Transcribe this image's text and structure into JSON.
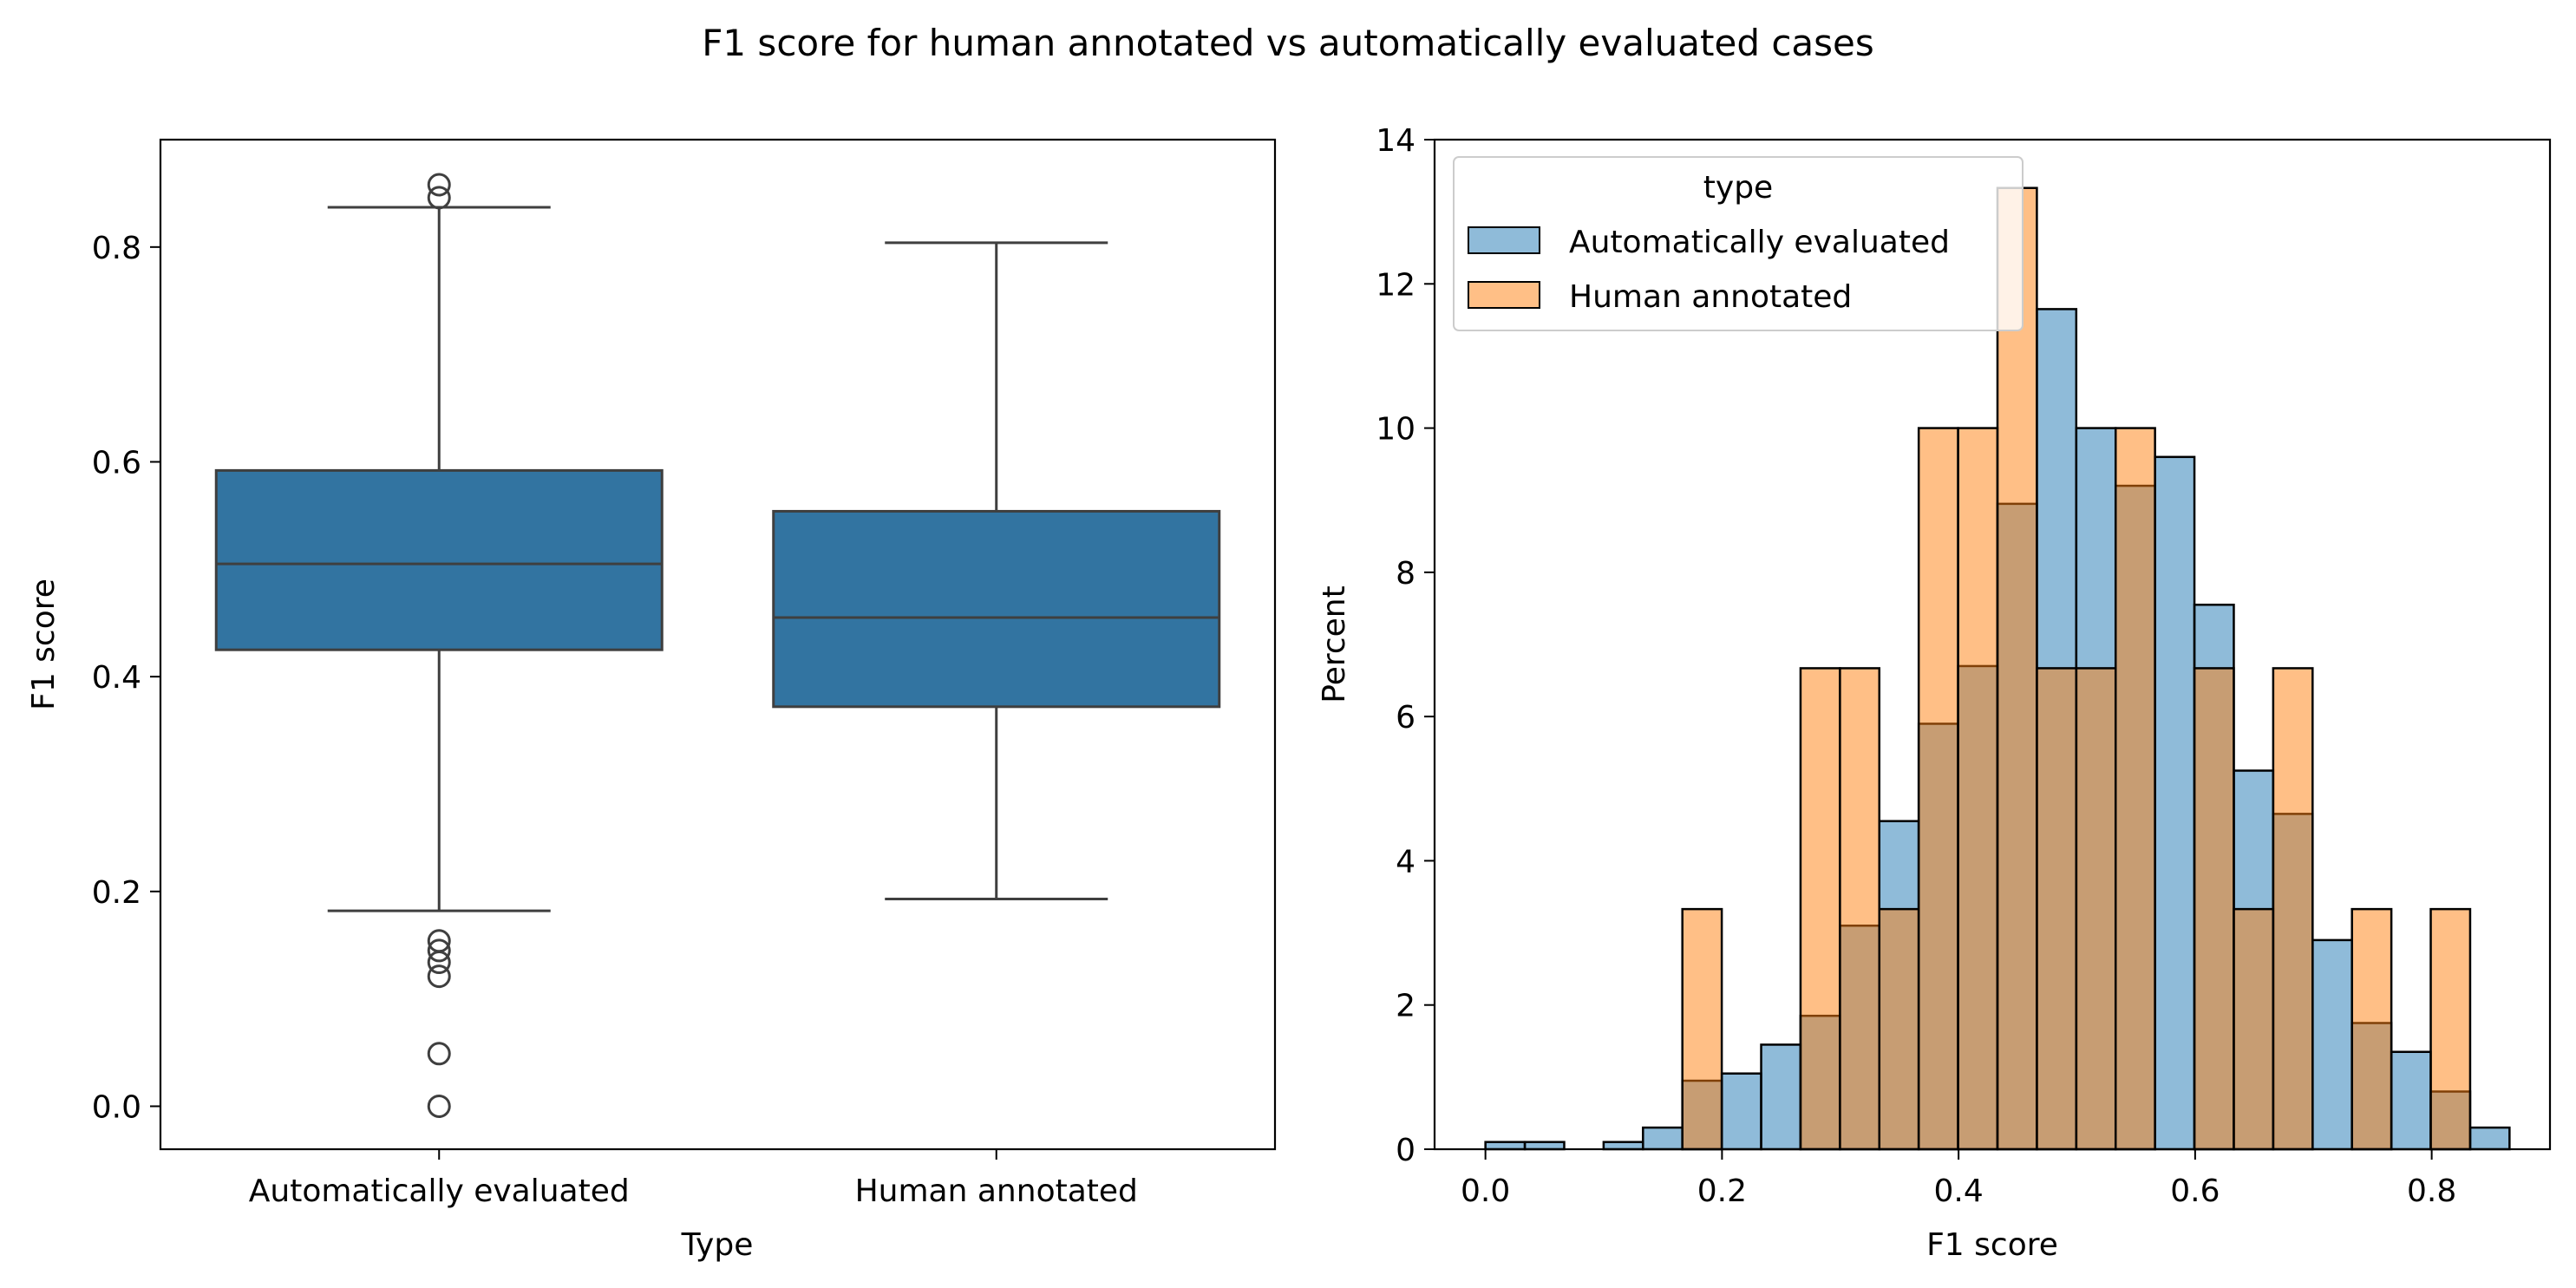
{
  "figure_title": "F1 score for human annotated vs automatically evaluated cases",
  "chart_data": [
    {
      "type": "box",
      "xlabel": "Type",
      "ylabel": "F1 score",
      "ylim": [
        -0.04,
        0.9
      ],
      "yticks": [
        "0.0",
        "0.2",
        "0.4",
        "0.6",
        "0.8"
      ],
      "categories": [
        "Automatically evaluated",
        "Human annotated"
      ],
      "boxes": [
        {
          "category": "Automatically evaluated",
          "whisker_low": 0.182,
          "q1": 0.425,
          "median": 0.505,
          "q3": 0.592,
          "whisker_high": 0.837,
          "outliers": [
            0.858,
            0.846,
            0.154,
            0.145,
            0.134,
            0.121,
            0.049,
            0.0
          ],
          "color": "#3274a1"
        },
        {
          "category": "Human annotated",
          "whisker_low": 0.193,
          "q1": 0.372,
          "median": 0.455,
          "q3": 0.554,
          "whisker_high": 0.804,
          "outliers": [],
          "color": "#3274a1"
        }
      ],
      "grid": false
    },
    {
      "type": "histogram",
      "xlabel": "F1 score",
      "ylabel": "Percent",
      "xlim": [
        -0.043,
        0.9
      ],
      "ylim": [
        0,
        14
      ],
      "xticks": [
        "0.0",
        "0.2",
        "0.4",
        "0.6",
        "0.8"
      ],
      "yticks": [
        "0",
        "2",
        "4",
        "6",
        "8",
        "10",
        "12",
        "14"
      ],
      "bin_start": 0.0,
      "bin_width": 0.0333,
      "legend": {
        "title": "type",
        "placement": "upper-left",
        "entries": [
          "Automatically evaluated",
          "Human annotated"
        ]
      },
      "series": [
        {
          "name": "Automatically evaluated",
          "color": "#1f77b4",
          "values": [
            0.1,
            0.1,
            0,
            0.1,
            0.3,
            0.95,
            1.05,
            1.45,
            1.85,
            3.1,
            4.55,
            5.9,
            6.7,
            8.95,
            11.65,
            10.0,
            9.2,
            9.6,
            7.55,
            5.25,
            4.65,
            2.9,
            1.75,
            1.35,
            0.8,
            0.3
          ]
        },
        {
          "name": "Human annotated",
          "color": "#ff7f0e",
          "values": [
            0,
            0,
            0,
            0,
            0,
            3.33,
            0,
            0,
            6.67,
            6.67,
            3.33,
            10.0,
            10.0,
            13.33,
            6.67,
            6.67,
            10.0,
            0,
            6.67,
            3.33,
            6.67,
            0,
            3.33,
            0,
            3.33,
            0
          ]
        }
      ],
      "grid": false
    }
  ]
}
